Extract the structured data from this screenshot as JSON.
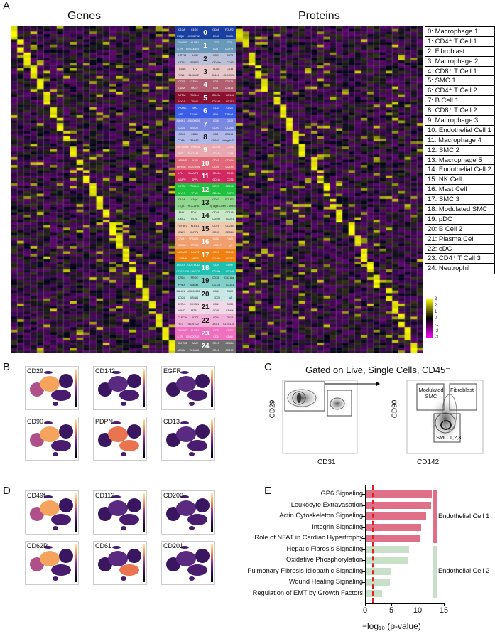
{
  "panels": {
    "a": "A",
    "b": "B",
    "c": "C",
    "d": "D",
    "e": "E"
  },
  "heatmap": {
    "genes_title": "Genes",
    "proteins_title": "Proteins",
    "colorbar_ticks": [
      "3",
      "2",
      "1",
      "0",
      "-1",
      "-2",
      "-3"
    ],
    "colors": {
      "high": "#ffff00",
      "mid": "#000000",
      "low": "#ff00ff"
    }
  },
  "clusters": [
    {
      "id": "0",
      "name": "Macrophage 1",
      "color": "#1b3fa0",
      "genes": [
        "C1QA",
        "C1QC",
        "C1QB",
        "LINC02712"
      ],
      "proteins": [
        "CD64",
        "FOLR2",
        "CD63",
        "MHCII"
      ]
    },
    {
      "id": "1",
      "name": "CD4⁺ T Cell 1",
      "color": "#6a98b8",
      "genes": [
        "CD40LG",
        "KLRB1",
        "IL7R",
        "LINC00892"
      ],
      "proteins": [
        "CD2",
        "CD5",
        "CD3",
        "CD279"
      ]
    },
    {
      "id": "2",
      "name": "Fibroblast",
      "color": "#b9bfd8",
      "genes": [
        "KRT14",
        "LUM",
        "KRT18",
        "SFRP2"
      ],
      "proteins": [
        "CD29",
        "CD73",
        "CD49a",
        "CD90"
      ]
    },
    {
      "id": "3",
      "name": "Macrophage 2",
      "color": "#e6c6c8",
      "genes": [
        "CD1C",
        "LYZ",
        "FCN1",
        "S100A12"
      ],
      "proteins": [
        "CD1C",
        "CD36",
        "CD11C",
        "CLEC12A"
      ]
    },
    {
      "id": "4",
      "name": "CD8⁺ T Cell 1",
      "color": "#b06070",
      "genes": [
        "CCL5",
        "GZMA",
        "CD8A",
        "NKG7"
      ],
      "proteins": [
        "CD3",
        "CD279",
        "CD8",
        "CD314"
      ]
    },
    {
      "id": "5",
      "name": "SMC 1",
      "color": "#8c1030",
      "genes": [
        "ACTA2",
        "TAGLN",
        "MYL9",
        "TPM2"
      ],
      "proteins": [
        "CD49a",
        "CD146",
        "CD142",
        "CD151"
      ]
    },
    {
      "id": "6",
      "name": "CD4⁺ T Cell 2",
      "color": "#3a5ee8",
      "genes": [
        "FAM6L",
        "MAL",
        "LTB",
        "RTKN2"
      ],
      "proteins": [
        "CD3",
        "CD28",
        "CD5",
        "TCRαβ"
      ]
    },
    {
      "id": "7",
      "name": "B Cell 1",
      "color": "#7a88e0",
      "genes": [
        "BANK1",
        "LINC00926",
        "CD24",
        "SNX22"
      ],
      "proteins": [
        "CD19",
        "CD22",
        "CD20",
        "CD268"
      ]
    },
    {
      "id": "8",
      "name": "CD8⁺ T Cell 2",
      "color": "#b0b8e8",
      "genes": [
        "CCL5",
        "CD8B",
        "CD8A",
        "ZFN683"
      ],
      "proteins": [
        "CD3",
        "CD314",
        "CD103",
        "Integrin β7"
      ]
    },
    {
      "id": "9",
      "name": "Macrophage 3",
      "color": "#e8a8b0",
      "genes": [
        "CEP295NL",
        "PRAM1",
        "NEB",
        "SLC11A1"
      ],
      "proteins": [
        "CD11b",
        "CD36",
        "CD11c",
        "CD64"
      ]
    },
    {
      "id": "10",
      "name": "Endothelial Cell 1",
      "color": "#e06878",
      "genes": [
        "APLNR",
        "KDR",
        "DIPK2B",
        "NOSTRIN"
      ],
      "proteins": [
        "CD31",
        "CD49b",
        "CD54",
        "CD144"
      ]
    },
    {
      "id": "11",
      "name": "Macrophage 4",
      "color": "#d02860",
      "genes": [
        "LPL",
        "SLAMF9",
        "MMP9",
        "SPP1"
      ],
      "proteins": [
        "CD11b",
        "CD13",
        "CD11c",
        "CD36"
      ]
    },
    {
      "id": "12",
      "name": "SMC 2",
      "color": "#20c040",
      "genes": [
        "ACTA2",
        "TAGLN",
        "MYL9",
        "TPM2"
      ],
      "proteins": [
        "CD29",
        "CD146",
        "CD49a",
        "EGFR"
      ]
    },
    {
      "id": "13",
      "name": "Macrophage 5",
      "color": "#90d890",
      "genes": [
        "C1QA",
        "C1QC",
        "C1QB",
        "HLA-DRA"
      ],
      "proteins": [
        "CD82",
        "FOLR2",
        "Ig Light Chain λ",
        "MHCII"
      ]
    },
    {
      "id": "14",
      "name": "Endothelial Cell 2",
      "color": "#c8e8c8",
      "genes": [
        "BMX",
        "EDN1",
        "DKK2",
        "ITLN1"
      ],
      "proteins": [
        "CD34",
        "CD146",
        "CD49b",
        "CD201"
      ]
    },
    {
      "id": "15",
      "name": "NK Cell",
      "color": "#f0c8b0",
      "genes": [
        "FGFBP2",
        "KLRD1",
        "GNLY",
        "KLRF1"
      ],
      "proteins": [
        "CD16",
        "CD244",
        "CD57",
        "CD314"
      ]
    },
    {
      "id": "16",
      "name": "Mast Cell",
      "color": "#f0a070",
      "genes": [
        "CPA3",
        "TPSAB1",
        "MS4A2",
        "TPSB2"
      ],
      "proteins": [
        "CD82",
        "FcεRI",
        "CD117",
        "IgE"
      ]
    },
    {
      "id": "17",
      "name": "SMC 3",
      "color": "#f08010",
      "genes": [
        "ADAM33",
        "DANT2",
        "CARMN",
        "MEG3"
      ],
      "proteins": [
        "CD29",
        "CD146",
        "CD49a",
        "CD151"
      ]
    },
    {
      "id": "18",
      "name": "Modulated SMC",
      "color": "#20c0b0",
      "genes": [
        "ABCC9",
        "GUCY1A2",
        "COX11038",
        "LINGO1"
      ],
      "proteins": [
        "CD9",
        "CD90",
        "CD49a",
        "CD146"
      ]
    },
    {
      "id": "19",
      "name": "pDC",
      "color": "#80d0c8",
      "genes": [
        "DRD4",
        "PROC",
        "PHEX",
        "SMIM5"
      ],
      "proteins": [
        "CD38",
        "CD218a",
        "CD123",
        "CD303"
      ]
    },
    {
      "id": "20",
      "name": "B Cell 2",
      "color": "#c8e8e8",
      "genes": [
        "BANK1",
        "LINC00926",
        "CD24",
        "MS4A1"
      ],
      "proteins": [
        "CD19",
        "CD22",
        "CD20",
        "IgD"
      ]
    },
    {
      "id": "21",
      "name": "Plasma Cell",
      "color": "#f0d8e8",
      "genes": [
        "DERL3",
        "JCHAIN",
        "IGHC",
        "MZB1"
      ],
      "proteins": [
        "CD19",
        "CD39",
        "CD38",
        "CD49f"
      ]
    },
    {
      "id": "22",
      "name": "cDC",
      "color": "#f0b0d8",
      "genes": [
        "CLEC9A",
        "IDO1",
        "FLT3",
        "TACSTD2"
      ],
      "proteins": [
        "CD1c",
        "CD13",
        "CD11c",
        "CLEC12A"
      ]
    },
    {
      "id": "23",
      "name": "CD4⁺ T Cell 3",
      "color": "#f070c0",
      "genes": [
        "CD40LG",
        "KLRB1",
        "IL7R",
        "LINC00892"
      ],
      "proteins": [
        "CD3",
        "CD28",
        "CD5",
        "CD45"
      ]
    },
    {
      "id": "24",
      "name": "Neutrophil",
      "color": "#707070",
      "genes": [
        "CMTM2",
        "MME",
        "MGAM",
        "S100A8"
      ],
      "proteins": [
        "CD15",
        "CD66b",
        "CD16",
        "CD177"
      ]
    }
  ],
  "umap_b": [
    "CD29",
    "CD142",
    "EGFR",
    "CD90",
    "PDPN",
    "CD13"
  ],
  "umap_d": [
    "CD49f",
    "CD112",
    "CD200",
    "CD62P",
    "CD61",
    "CD201"
  ],
  "facs": {
    "title": "Gated on Live, Single Cells, CD45⁻",
    "plot1": {
      "xlabel": "CD31",
      "ylabel": "CD29"
    },
    "plot2": {
      "xlabel": "CD142",
      "ylabel": "CD90",
      "gates": [
        "Modulated SMC",
        "Fibroblast",
        "SMC 1,2,3"
      ]
    }
  },
  "chart_data": {
    "type": "bar",
    "orientation": "horizontal",
    "categories": [
      "GP6 Signaling",
      "Leukocyte Extravasation",
      "Actin Cytoskeleton Signaling",
      "Integrin Signaling",
      "Role of NFAT in Cardiac Hypertrophy",
      "Hepatic Fibrosis Signaling",
      "Oxidative Phosphorylation",
      "Pulmonary Fibrosis Idiopathic Signaling",
      "Wound Healing Signaling",
      "Regulation of EMT by Growth Factors"
    ],
    "values": [
      12.7,
      12.6,
      11.6,
      10.7,
      10.5,
      8.4,
      8.2,
      5.0,
      4.7,
      3.2
    ],
    "groups": [
      {
        "name": "Endothelial Cell 1",
        "color": "#e07088",
        "count": 5
      },
      {
        "name": "Endothelial Cell 2",
        "color": "#c8e0c8",
        "count": 5
      }
    ],
    "threshold": 1.3,
    "xlabel": "−log₁₀ (p‑value)",
    "xlim": [
      0,
      15
    ],
    "xticks": [
      "0",
      "5",
      "10",
      "15"
    ]
  }
}
